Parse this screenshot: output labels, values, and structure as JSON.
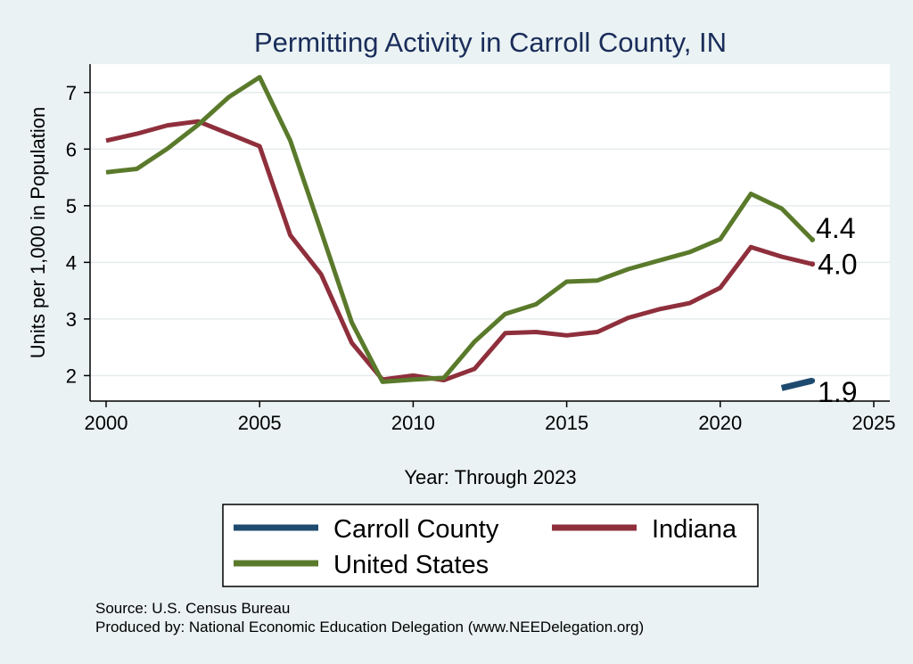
{
  "chart_data": {
    "type": "line",
    "title": "Permitting Activity in Carroll County, IN",
    "xlabel": "Year: Through 2023",
    "ylabel": "Units per 1,000 in Population",
    "xlim": [
      2000,
      2025
    ],
    "ylim": [
      1.55,
      7.5
    ],
    "x_ticks": [
      2000,
      2005,
      2010,
      2015,
      2020,
      2025
    ],
    "y_ticks": [
      2,
      3,
      4,
      5,
      6,
      7
    ],
    "grid": true,
    "series": [
      {
        "name": "Indiana",
        "color": "#8f2f3c",
        "x": [
          2000,
          2001,
          2002,
          2003,
          2004,
          2005,
          2006,
          2007,
          2008,
          2009,
          2010,
          2011,
          2012,
          2013,
          2014,
          2015,
          2016,
          2017,
          2018,
          2019,
          2020,
          2021,
          2022,
          2023
        ],
        "y": [
          6.15,
          6.27,
          6.42,
          6.49,
          6.27,
          6.05,
          4.48,
          3.79,
          2.58,
          1.93,
          2.0,
          1.92,
          2.12,
          2.75,
          2.77,
          2.71,
          2.77,
          3.02,
          3.17,
          3.28,
          3.55,
          4.27,
          4.1,
          3.97
        ],
        "end_label": "4.0"
      },
      {
        "name": "United States",
        "color": "#5a7a2b",
        "x": [
          2000,
          2001,
          2002,
          2003,
          2004,
          2005,
          2006,
          2007,
          2008,
          2009,
          2010,
          2011,
          2012,
          2013,
          2014,
          2015,
          2016,
          2017,
          2018,
          2019,
          2020,
          2021,
          2022,
          2023
        ],
        "y": [
          5.59,
          5.65,
          6.01,
          6.43,
          6.92,
          7.27,
          6.15,
          4.55,
          2.94,
          1.89,
          1.93,
          1.96,
          2.6,
          3.09,
          3.26,
          3.66,
          3.68,
          3.88,
          4.03,
          4.18,
          4.41,
          5.21,
          4.95,
          4.4
        ],
        "end_label": "4.4"
      },
      {
        "name": "Carroll County",
        "color": "#1f4a70",
        "x": [
          2022,
          2023
        ],
        "y": [
          1.78,
          1.91
        ],
        "end_label": "1.9"
      }
    ],
    "legend": {
      "position": "bottom",
      "order": [
        "Carroll County",
        "Indiana",
        "United States"
      ]
    },
    "notes": [
      "Source: U.S. Census Bureau",
      "Produced by: National Economic Education Delegation (www.NEEDelegation.org)"
    ]
  }
}
